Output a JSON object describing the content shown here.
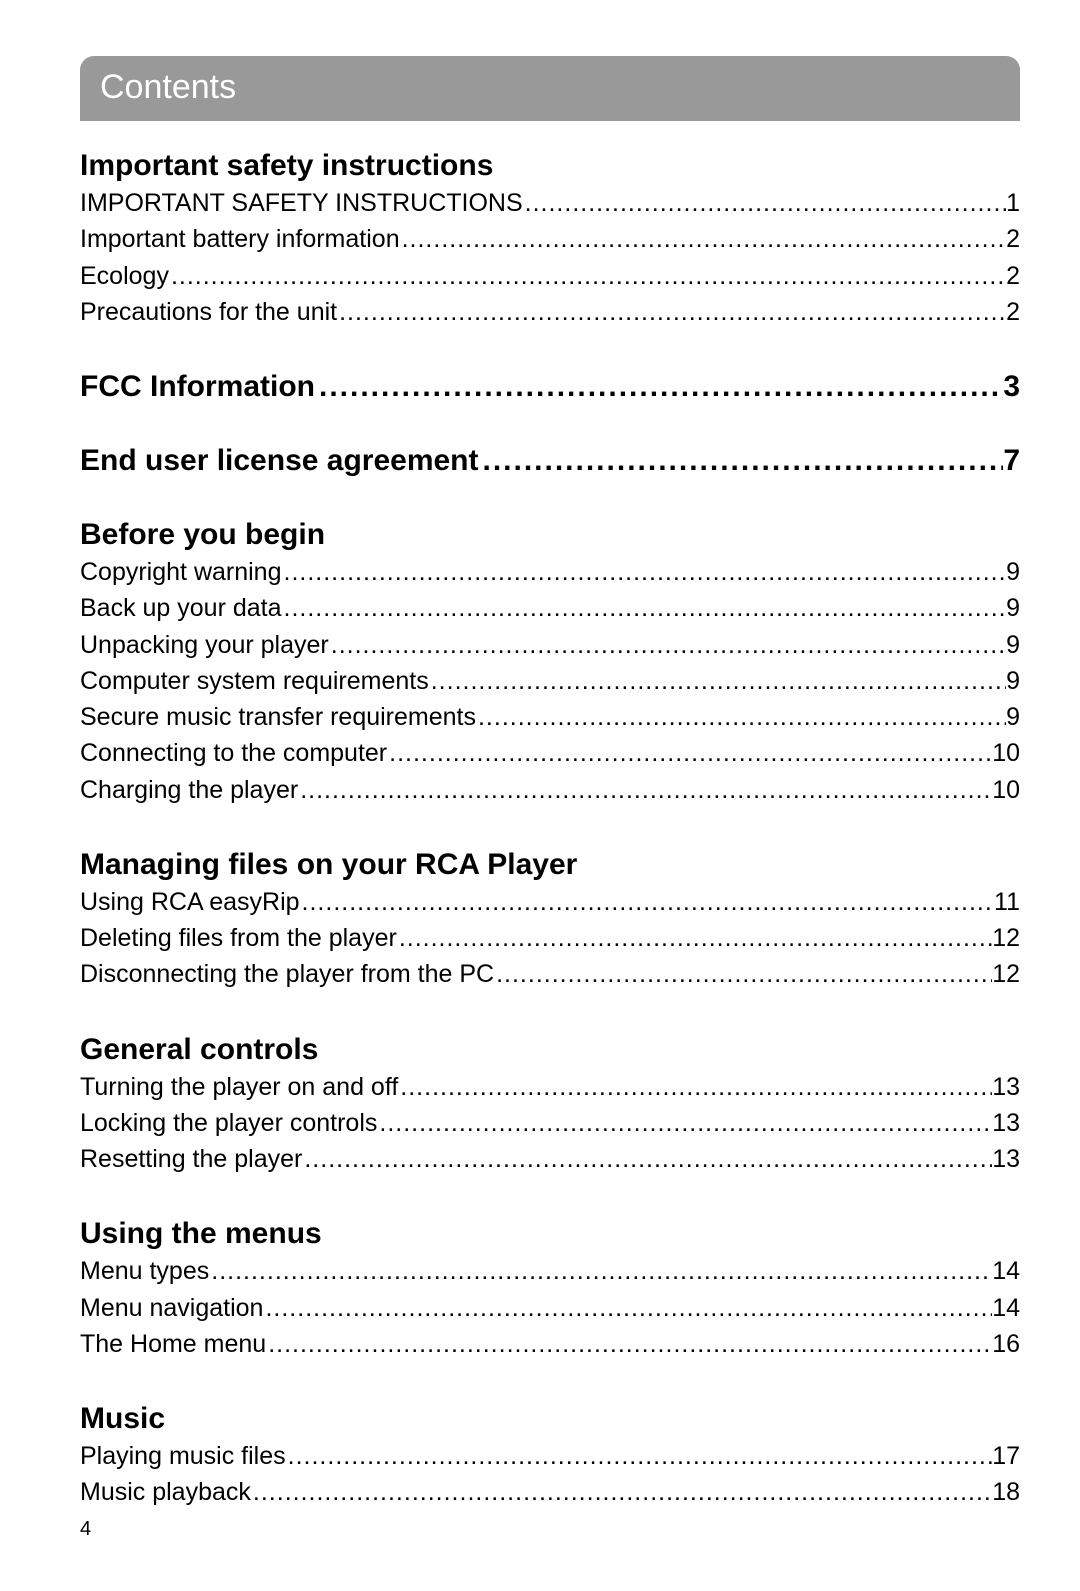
{
  "header": {
    "title": "Contents"
  },
  "pageNumber": "4",
  "dotLeader": "............................................................................................................................................................................................................................................................",
  "sections": [
    {
      "heading": {
        "label": "Important safety instructions",
        "page": null
      },
      "items": [
        {
          "label": "IMPORTANT SAFETY INSTRUCTIONS",
          "page": "1"
        },
        {
          "label": "Important battery information",
          "page": "2"
        },
        {
          "label": "Ecology",
          "page": "2"
        },
        {
          "label": "Precautions for the unit",
          "page": "2"
        }
      ]
    },
    {
      "heading": {
        "label": "FCC Information",
        "page": "3"
      },
      "items": []
    },
    {
      "heading": {
        "label": "End user license agreement",
        "page": "7"
      },
      "items": []
    },
    {
      "heading": {
        "label": "Before you begin",
        "page": null
      },
      "items": [
        {
          "label": "Copyright warning",
          "page": "9"
        },
        {
          "label": "Back up your data",
          "page": "9"
        },
        {
          "label": "Unpacking your player",
          "page": "9"
        },
        {
          "label": "Computer system requirements",
          "page": "9"
        },
        {
          "label": "Secure music transfer requirements",
          "page": "9"
        },
        {
          "label": "Connecting to the computer",
          "page": "10"
        },
        {
          "label": "Charging the player",
          "page": "10"
        }
      ]
    },
    {
      "heading": {
        "label": "Managing files on your RCA Player",
        "page": null
      },
      "items": [
        {
          "label": "Using RCA easyRip",
          "page": "11"
        },
        {
          "label": "Deleting files from the player",
          "page": "12"
        },
        {
          "label": "Disconnecting the player from the PC",
          "page": "12"
        }
      ]
    },
    {
      "heading": {
        "label": "General controls",
        "page": null
      },
      "items": [
        {
          "label": "Turning the player on and off",
          "page": "13"
        },
        {
          "label": "Locking the player controls",
          "page": "13"
        },
        {
          "label": "Resetting the player",
          "page": "13"
        }
      ]
    },
    {
      "heading": {
        "label": "Using the menus",
        "page": null
      },
      "items": [
        {
          "label": "Menu types",
          "page": "14"
        },
        {
          "label": "Menu navigation",
          "page": "14"
        },
        {
          "label": "The Home menu",
          "page": "16"
        }
      ]
    },
    {
      "heading": {
        "label": "Music",
        "page": null
      },
      "items": [
        {
          "label": "Playing music files",
          "page": "17"
        },
        {
          "label": "Music playback",
          "page": "18"
        }
      ]
    }
  ]
}
